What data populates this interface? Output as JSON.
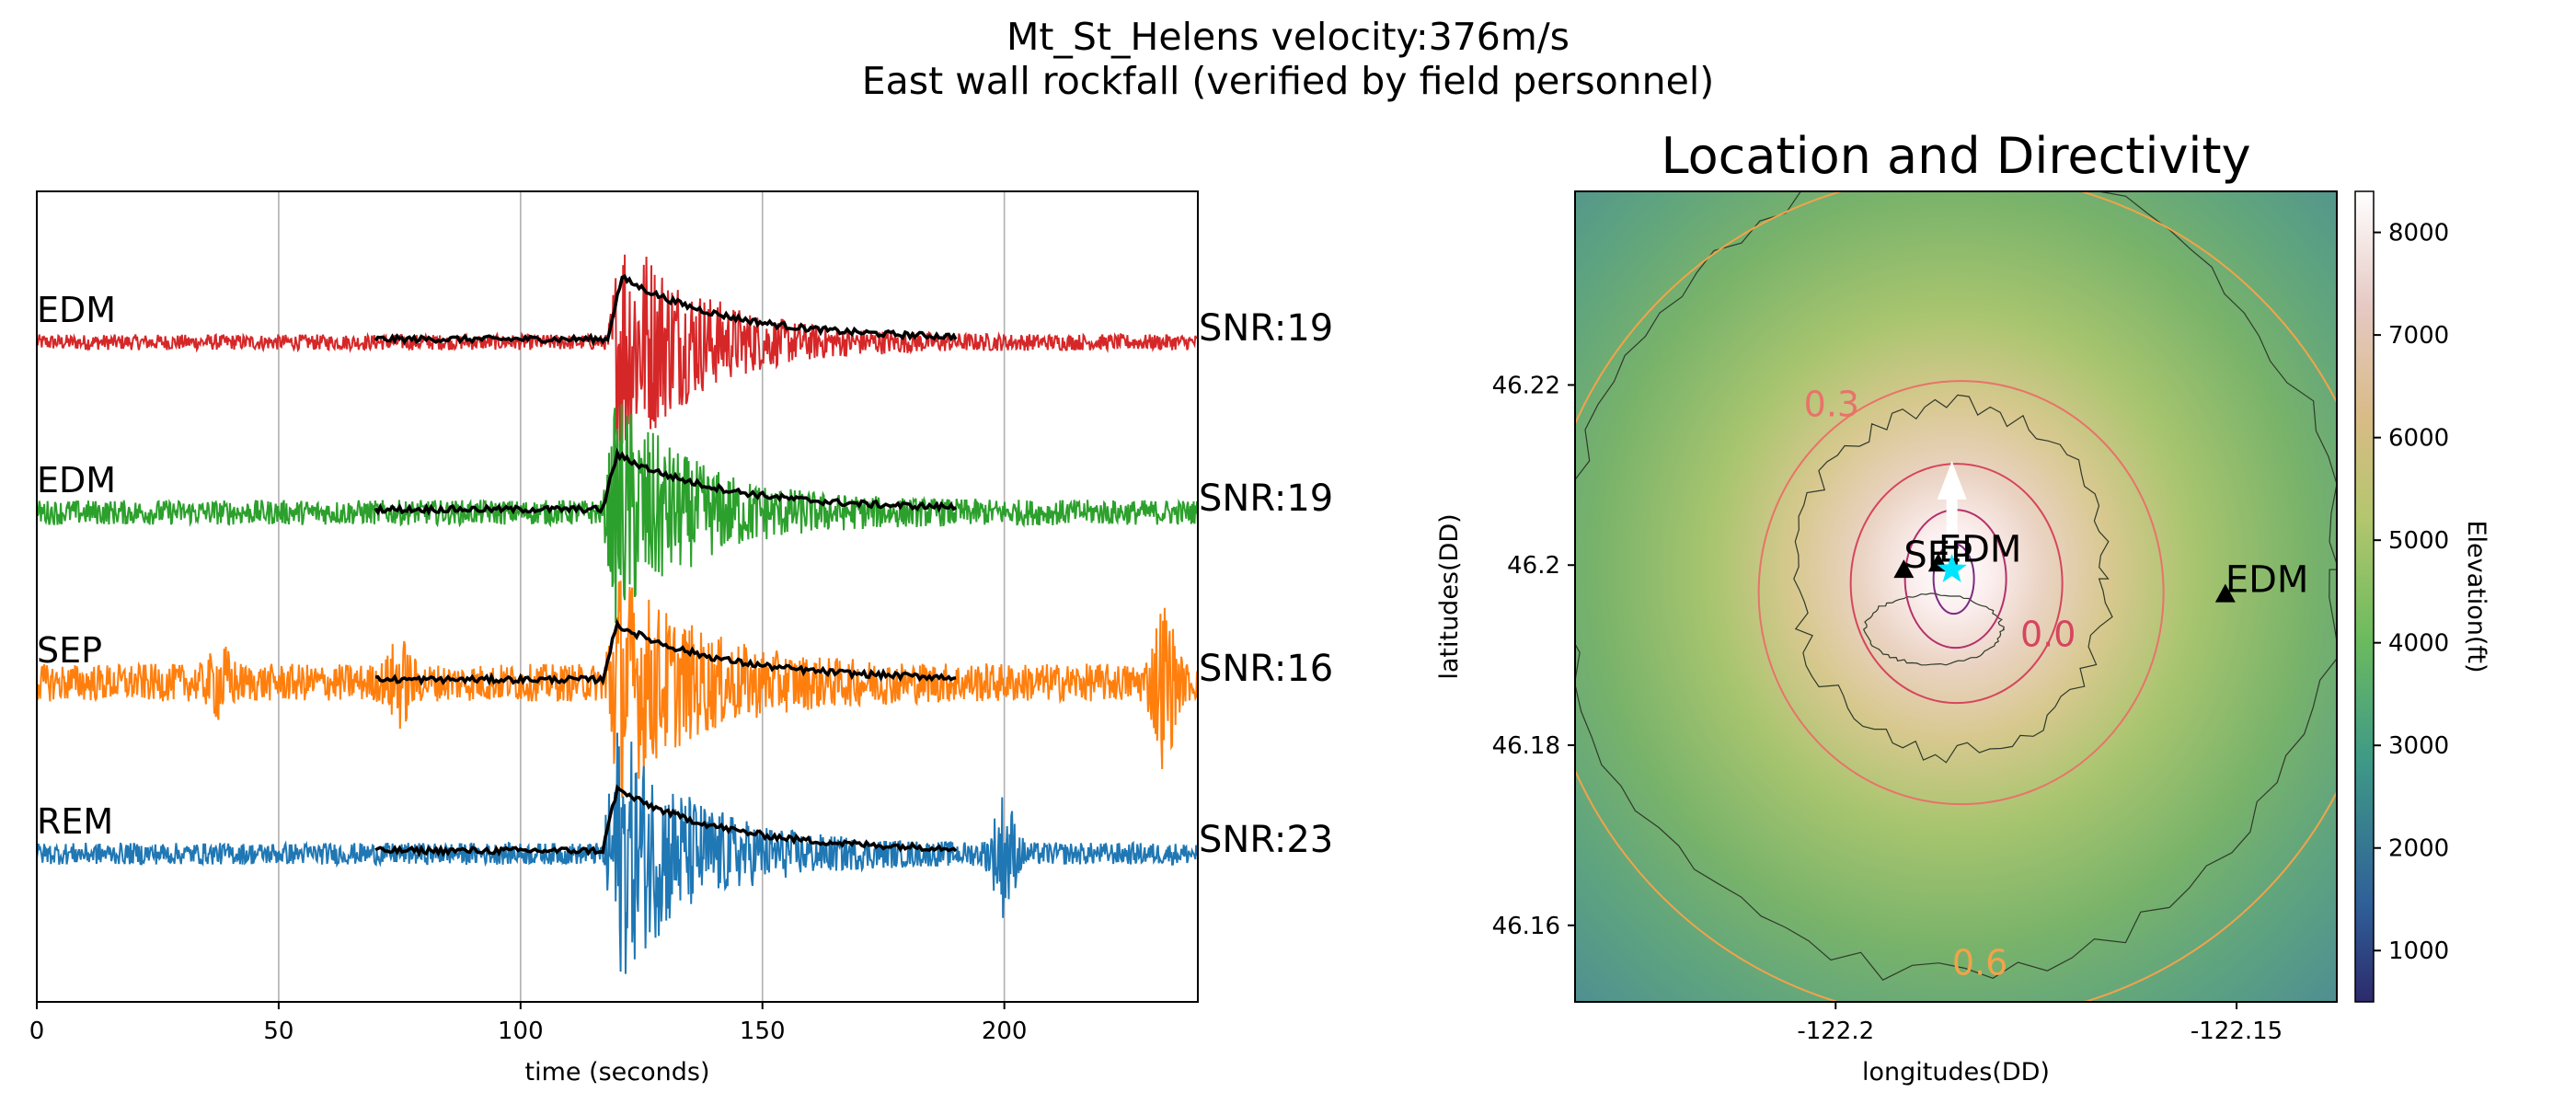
{
  "figure": {
    "suptitle_line1": "Mt_St_Helens velocity:376m/s",
    "suptitle_line2": "East wall rockfall (verified by field personnel)"
  },
  "chart_data": [
    {
      "type": "line",
      "title": "",
      "xlabel": "time (seconds)",
      "ylabel": "",
      "xlim": [
        0,
        240
      ],
      "x_ticks": [
        0,
        50,
        100,
        150,
        200
      ],
      "grid": "vertical",
      "series": [
        {
          "name": "EDM",
          "snr_label": "SNR:19",
          "color": "#d62728",
          "noise": 0.05,
          "event_start": 118,
          "event_peak": 0.95,
          "envelope_peak": 0.45,
          "extra_bursts": []
        },
        {
          "name": "EDM",
          "snr_label": "SNR:19",
          "color": "#2ca02c",
          "noise": 0.08,
          "event_start": 117,
          "event_peak": 0.85,
          "envelope_peak": 0.4,
          "extra_bursts": []
        },
        {
          "name": "SEP",
          "snr_label": "SNR:16",
          "color": "#ff7f0e",
          "noise": 0.12,
          "event_start": 117,
          "event_peak": 0.8,
          "envelope_peak": 0.4,
          "extra_bursts": [
            [
              38,
              0.15
            ],
            [
              75,
              0.2
            ],
            [
              233,
              0.45
            ]
          ]
        },
        {
          "name": "REM",
          "snr_label": "SNR:23",
          "color": "#1f77b4",
          "noise": 0.07,
          "event_start": 117,
          "event_peak": 0.95,
          "envelope_peak": 0.45,
          "extra_bursts": [
            [
              200,
              0.35
            ]
          ]
        }
      ],
      "envelope": {
        "color": "#000000",
        "x_range": [
          70,
          190
        ]
      }
    },
    {
      "type": "heatmap",
      "title": "Location and Directivity",
      "xlabel": "longitudes(DD)",
      "ylabel": "latitudes(DD)",
      "xlim": [
        -122.2325,
        -122.1375
      ],
      "ylim": [
        46.1515,
        46.2415
      ],
      "x_ticks": [
        -122.2,
        -122.15
      ],
      "x_tick_labels": [
        "-122.2",
        "-122.15"
      ],
      "y_ticks": [
        46.16,
        46.18,
        46.2,
        46.22
      ],
      "y_tick_labels": [
        "46.16",
        "46.18",
        "46.2",
        "46.22"
      ],
      "colorbar": {
        "label": "Elevation(ft)",
        "min": 500,
        "max": 8400,
        "ticks": [
          1000,
          2000,
          3000,
          4000,
          5000,
          6000,
          7000,
          8000
        ]
      },
      "stations": [
        {
          "name": "SEP",
          "lon": -122.1915,
          "lat": 46.1995
        },
        {
          "name": "EDM",
          "lon": -122.1872,
          "lat": 46.2002
        },
        {
          "name": "EDM",
          "lon": -122.1514,
          "lat": 46.1968
        }
      ],
      "contour_labels": [
        {
          "text": "0.3",
          "lon": -122.2005,
          "lat": 46.2165,
          "color": "#e8736a"
        },
        {
          "text": "0.0",
          "lon": -122.1735,
          "lat": 46.191,
          "color": "#d6455f"
        },
        {
          "text": "0.6",
          "lon": -122.182,
          "lat": 46.1545,
          "color": "#f2a34a"
        }
      ],
      "source": {
        "lon": -122.1855,
        "lat": 46.1995,
        "color": "#00e5ff"
      },
      "directivity_arrow": {
        "from_lat": 46.2015,
        "to_lat": 46.2085,
        "color": "#ffffff"
      }
    }
  ]
}
